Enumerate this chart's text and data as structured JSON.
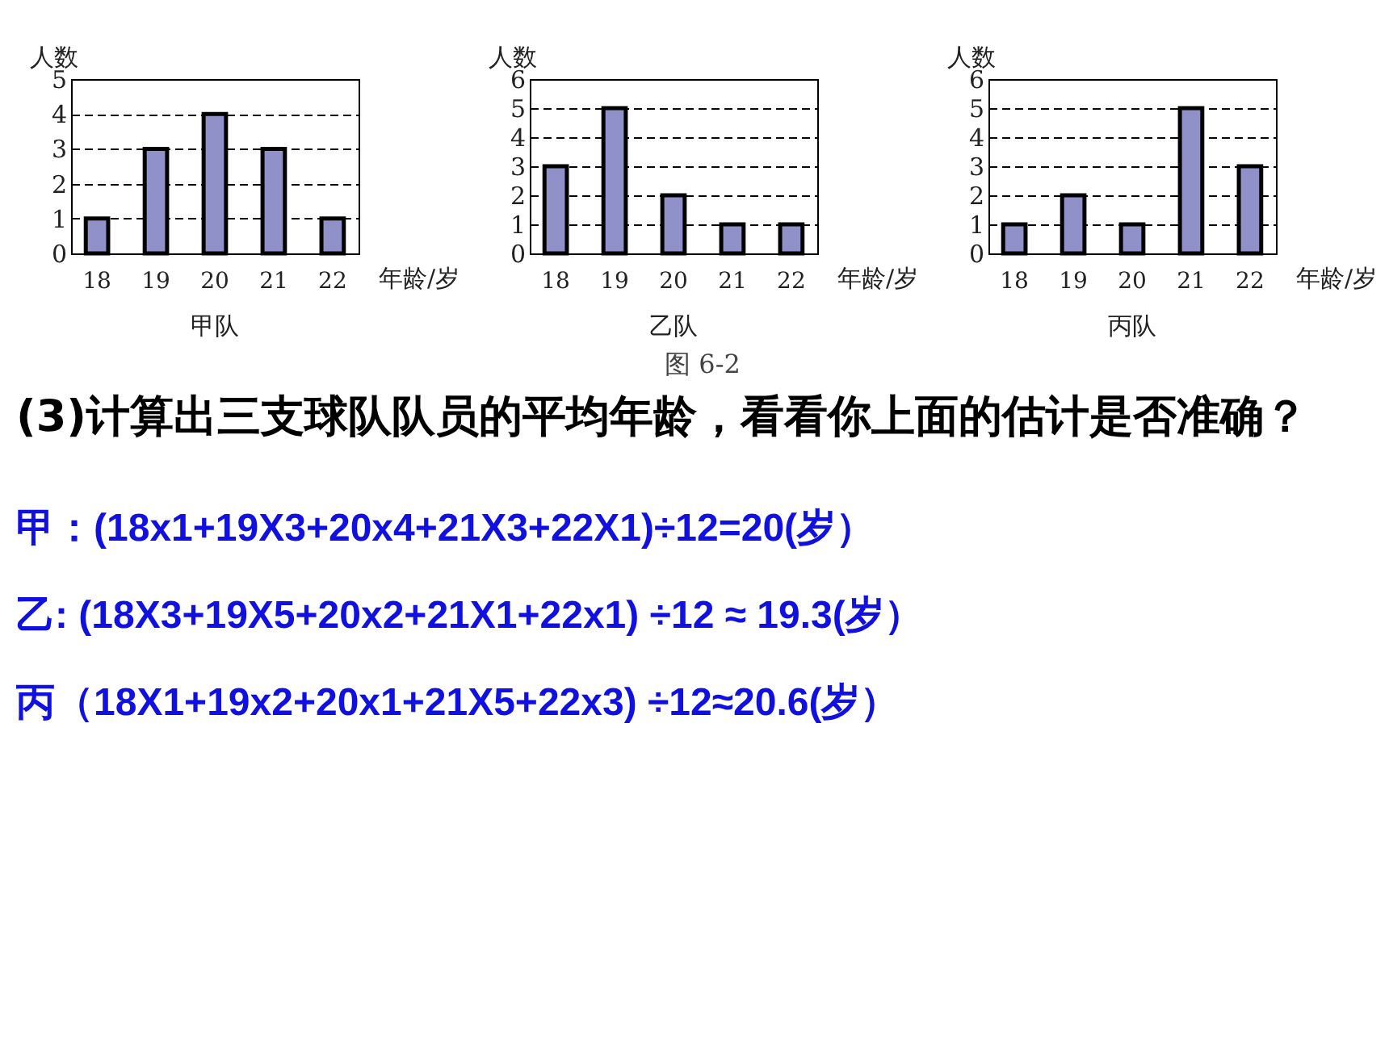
{
  "chart_data": [
    {
      "type": "bar",
      "title": "甲队",
      "xlabel": "年龄/岁",
      "ylabel": "人数",
      "categories": [
        "18",
        "19",
        "20",
        "21",
        "22"
      ],
      "values": [
        1,
        3,
        4,
        3,
        1
      ],
      "color": "#9191c9",
      "ylim": [
        0,
        5
      ],
      "yticks": [
        0,
        1,
        2,
        3,
        4,
        5
      ],
      "grid": "y"
    },
    {
      "type": "bar",
      "title": "乙队",
      "xlabel": "年龄/岁",
      "ylabel": "人数",
      "categories": [
        "18",
        "19",
        "20",
        "21",
        "22"
      ],
      "values": [
        3,
        5,
        2,
        1,
        1
      ],
      "color": "#9191c9",
      "ylim": [
        0,
        6
      ],
      "yticks": [
        0,
        1,
        2,
        3,
        4,
        5,
        6
      ],
      "grid": "y",
      "annotations": [
        "图 6-2",
        "(3)计算出三支球队队员的平均年龄，看看你上面的估计是否准确？",
        "甲：(18x1+19X3+20x4+21X3+22X1)÷12=20(岁）",
        "乙: (18X3+19X5+20x2+21X1+22x1) ÷12 ≈ 19.3(岁）",
        "丙（18X1+19x2+20x1+21X5+22x3) ÷12≈20.6(岁）"
      ]
    },
    {
      "type": "bar",
      "title": "丙队",
      "xlabel": "年龄/岁",
      "ylabel": "人数",
      "categories": [
        "18",
        "19",
        "20",
        "21",
        "22"
      ],
      "values": [
        1,
        2,
        1,
        5,
        3
      ],
      "color": "#9191c9",
      "ylim": [
        0,
        6
      ],
      "yticks": [
        0,
        1,
        2,
        3,
        4,
        5,
        6
      ],
      "grid": "y"
    }
  ]
}
